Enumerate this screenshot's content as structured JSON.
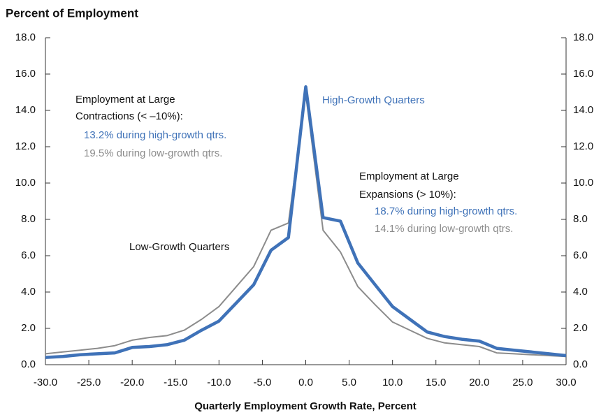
{
  "chart_data": {
    "type": "line",
    "title": "Percent of Employment",
    "xlabel": "Quarterly Employment Growth Rate, Percent",
    "x": [
      -30,
      -28,
      -26,
      -24,
      -22,
      -20,
      -18,
      -16,
      -14,
      -12,
      -10,
      -8,
      -6,
      -4,
      -2,
      0,
      2,
      4,
      6,
      8,
      10,
      12,
      14,
      16,
      18,
      20,
      22,
      24,
      26,
      28,
      30
    ],
    "series": [
      {
        "name": "Low-Growth Quarters",
        "color": "#8c8c8c",
        "width": 2,
        "values": [
          0.6,
          0.7,
          0.8,
          0.9,
          1.05,
          1.35,
          1.5,
          1.6,
          1.9,
          2.5,
          3.2,
          4.3,
          5.4,
          7.4,
          7.8,
          14.9,
          7.4,
          6.2,
          4.3,
          3.3,
          2.35,
          1.9,
          1.45,
          1.2,
          1.1,
          1.0,
          0.65,
          0.6,
          0.55,
          0.5,
          0.45
        ]
      },
      {
        "name": "High-Growth Quarters",
        "color": "#3f72b8",
        "width": 4.5,
        "values": [
          0.4,
          0.45,
          0.55,
          0.6,
          0.65,
          0.95,
          1.0,
          1.1,
          1.35,
          1.9,
          2.4,
          3.4,
          4.4,
          6.3,
          7.0,
          15.3,
          8.1,
          7.9,
          5.6,
          4.4,
          3.2,
          2.5,
          1.8,
          1.55,
          1.4,
          1.3,
          0.9,
          0.8,
          0.7,
          0.6,
          0.5
        ]
      }
    ],
    "xlim": [
      -30,
      30
    ],
    "ylim": [
      0,
      18
    ],
    "xticks": [
      {
        "value": -30,
        "label": "-30.0"
      },
      {
        "value": -25,
        "label": "-25.0"
      },
      {
        "value": -20,
        "label": "-20.0"
      },
      {
        "value": -15,
        "label": "-15.0"
      },
      {
        "value": -10,
        "label": "-10.0"
      },
      {
        "value": -5,
        "label": "-5.0"
      },
      {
        "value": 0,
        "label": "0.0"
      },
      {
        "value": 5,
        "label": "5.0"
      },
      {
        "value": 10,
        "label": "10.0"
      },
      {
        "value": 15,
        "label": "15.0"
      },
      {
        "value": 20,
        "label": "20.0"
      },
      {
        "value": 25,
        "label": "25.0"
      },
      {
        "value": 30,
        "label": "30.0"
      }
    ],
    "yticks": [
      {
        "value": 0,
        "label": "0.0"
      },
      {
        "value": 2,
        "label": "2.0"
      },
      {
        "value": 4,
        "label": "4.0"
      },
      {
        "value": 6,
        "label": "6.0"
      },
      {
        "value": 8,
        "label": "8.0"
      },
      {
        "value": 10,
        "label": "10.0"
      },
      {
        "value": 12,
        "label": "12.0"
      },
      {
        "value": 14,
        "label": "14.0"
      },
      {
        "value": 16,
        "label": "16.0"
      },
      {
        "value": 18,
        "label": "18.0"
      }
    ],
    "annotations": [
      {
        "text": "Employment at Large",
        "color": "#111111"
      },
      {
        "text": "Contractions (< –10%):",
        "color": "#111111"
      },
      {
        "text": "13.2% during high-growth qtrs.",
        "color": "#3f72b8"
      },
      {
        "text": "19.5% during low-growth qtrs.",
        "color": "#8c8c8c"
      },
      {
        "text": "Employment at Large",
        "color": "#111111"
      },
      {
        "text": "Expansions (> 10%):",
        "color": "#111111"
      },
      {
        "text": "18.7% during high-growth qtrs.",
        "color": "#3f72b8"
      },
      {
        "text": "14.1% during low-growth qtrs.",
        "color": "#8c8c8c"
      }
    ]
  }
}
